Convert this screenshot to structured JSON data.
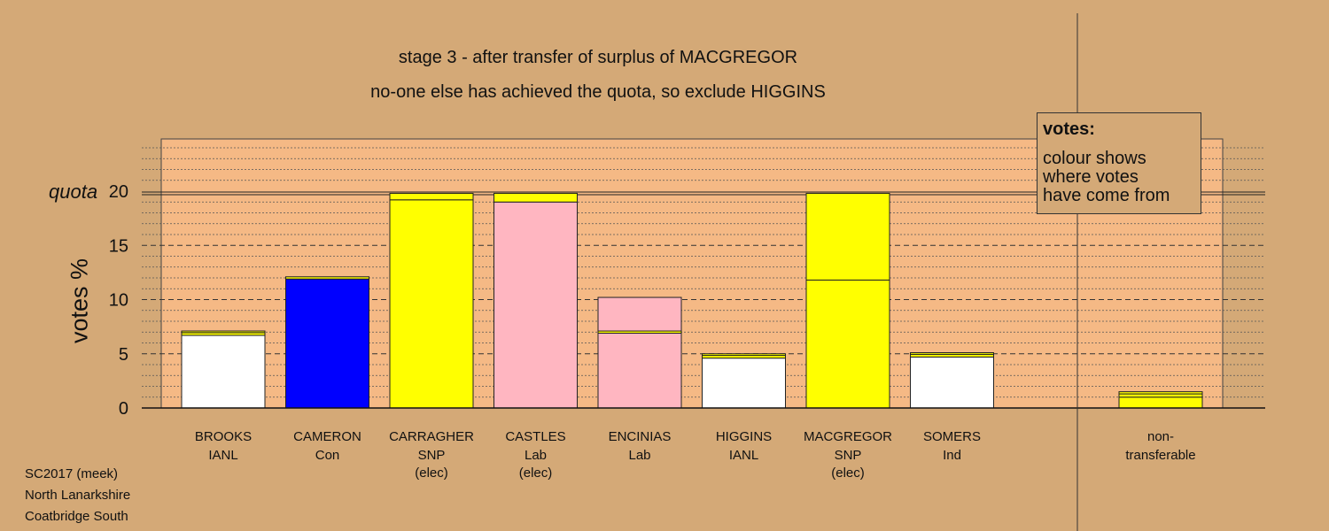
{
  "chart_data": {
    "type": "bar",
    "title": "stage 3 - after transfer of surplus of MACGREGOR",
    "subtitle": "no-one else has achieved the quota, so exclude HIGGINS",
    "ylabel": "votes %",
    "ylim": [
      0,
      25
    ],
    "yticks": [
      0,
      5,
      10,
      15,
      20
    ],
    "quota": 19.8,
    "quota_label": "quota",
    "legend": {
      "title": "votes:",
      "lines": [
        "colour shows",
        "where votes",
        "have come from"
      ]
    },
    "candidates": [
      {
        "name": "BROOKS",
        "party": "IANL",
        "status": "",
        "segments": [
          {
            "value": 6.7,
            "color": "#ffffff"
          },
          {
            "value": 0.25,
            "color": "#ffff00"
          },
          {
            "value": 0.15,
            "color": "#ffff00"
          }
        ]
      },
      {
        "name": "CAMERON",
        "party": "Con",
        "status": "",
        "segments": [
          {
            "value": 11.9,
            "color": "#0000ff"
          },
          {
            "value": 0.2,
            "color": "#ffff00"
          }
        ]
      },
      {
        "name": "CARRAGHER",
        "party": "SNP",
        "status": "(elec)",
        "segments": [
          {
            "value": 19.2,
            "color": "#ffff00"
          },
          {
            "value": 0.6,
            "color": "#ffff00"
          }
        ]
      },
      {
        "name": "CASTLES",
        "party": "Lab",
        "status": "(elec)",
        "segments": [
          {
            "value": 19.0,
            "color": "#ffb6c1"
          },
          {
            "value": 0.8,
            "color": "#ffff00"
          }
        ]
      },
      {
        "name": "ENCINIAS",
        "party": "Lab",
        "status": "",
        "segments": [
          {
            "value": 6.9,
            "color": "#ffb6c1"
          },
          {
            "value": 0.2,
            "color": "#ffff00"
          },
          {
            "value": 3.1,
            "color": "#ffb6c1"
          }
        ]
      },
      {
        "name": "HIGGINS",
        "party": "IANL",
        "status": "",
        "segments": [
          {
            "value": 4.6,
            "color": "#ffffff"
          },
          {
            "value": 0.25,
            "color": "#ffff00"
          },
          {
            "value": 0.15,
            "color": "#ffff00"
          }
        ]
      },
      {
        "name": "MACGREGOR",
        "party": "SNP",
        "status": "(elec)",
        "segments": [
          {
            "value": 11.8,
            "color": "#ffff00"
          },
          {
            "value": 8.0,
            "color": "#ffff00"
          }
        ]
      },
      {
        "name": "SOMERS",
        "party": "Ind",
        "status": "",
        "segments": [
          {
            "value": 4.7,
            "color": "#ffffff"
          },
          {
            "value": 0.25,
            "color": "#ffff00"
          },
          {
            "value": 0.15,
            "color": "#ffff00"
          }
        ]
      }
    ],
    "nontransferable": {
      "name": "non-",
      "party": "transferable",
      "status": "",
      "segments": [
        {
          "value": 1.0,
          "color": "#ffff00"
        },
        {
          "value": 0.3,
          "color": "#ffff00"
        },
        {
          "value": 0.2,
          "color": "#ffff00"
        }
      ]
    }
  },
  "footer": {
    "line1": "SC2017 (meek)",
    "line2": "North Lanarkshire",
    "line3": "Coatbridge South"
  }
}
